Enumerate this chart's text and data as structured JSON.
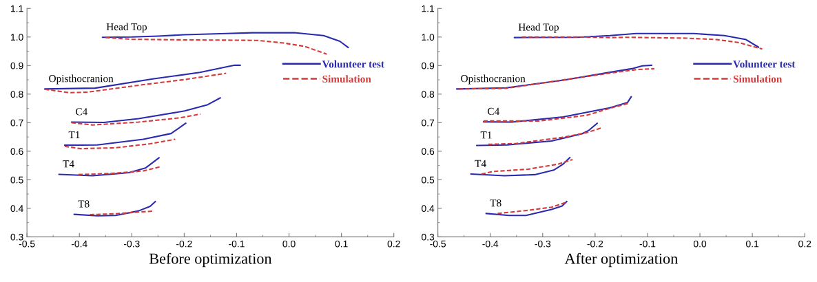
{
  "chart_data": [
    {
      "type": "line",
      "xlabel": "Before optimization",
      "xlim": [
        -0.5,
        0.2
      ],
      "ylim": [
        0.3,
        1.1
      ],
      "xticks": [
        -0.5,
        -0.4,
        -0.3,
        -0.2,
        -0.1,
        {
          "value": 0,
          "label": "0.0"
        },
        0.1,
        0.2
      ],
      "yticks": [
        0.3,
        0.4,
        0.5,
        0.6,
        0.7,
        0.8,
        0.9,
        {
          "value": 1,
          "label": "1.0"
        },
        1.1
      ],
      "grid": false,
      "legend": "right",
      "marker": "none",
      "annotations": [
        "Head Top",
        "Opisthocranion",
        "C4",
        "T1",
        "T4",
        "T8"
      ],
      "series": [
        {
          "name": "Volunteer test",
          "color": "#2a2ab0",
          "line_style": "solid",
          "x": [
            -0.356,
            -0.3,
            -0.25,
            -0.2,
            -0.12,
            -0.07,
            0.01,
            0.066,
            0.097,
            0.113
          ],
          "values": [
            0.999,
            1.0,
            1.003,
            1.008,
            1.012,
            1.015,
            1.015,
            1.005,
            0.985,
            0.963
          ]
        },
        {
          "name": "Simulation",
          "color": "#d43a3a",
          "line_style": "dashed",
          "x": [
            -0.35,
            -0.3,
            -0.2,
            -0.12,
            -0.06,
            -0.01,
            0.03,
            0.072
          ],
          "values": [
            0.998,
            0.992,
            0.99,
            0.989,
            0.988,
            0.979,
            0.967,
            0.94
          ]
        },
        {
          "color": "#2a2ab0",
          "line_style": "solid",
          "x": [
            -0.466,
            -0.37,
            -0.26,
            -0.17,
            -0.115,
            -0.105,
            -0.093
          ],
          "values": [
            0.818,
            0.821,
            0.853,
            0.876,
            0.897,
            0.901,
            0.901
          ]
        },
        {
          "color": "#d43a3a",
          "line_style": "dashed",
          "x": [
            -0.466,
            -0.419,
            -0.384,
            -0.287,
            -0.199,
            -0.12
          ],
          "values": [
            0.817,
            0.805,
            0.807,
            0.831,
            0.851,
            0.873
          ]
        },
        {
          "color": "#2a2ab0",
          "line_style": "solid",
          "x": [
            -0.415,
            -0.353,
            -0.287,
            -0.199,
            -0.155,
            -0.131
          ],
          "values": [
            0.702,
            0.701,
            0.714,
            0.741,
            0.763,
            0.787
          ]
        },
        {
          "color": "#d43a3a",
          "line_style": "dashed",
          "x": [
            -0.415,
            -0.375,
            -0.287,
            -0.208,
            -0.169
          ],
          "values": [
            0.7,
            0.692,
            0.702,
            0.717,
            0.73
          ]
        },
        {
          "color": "#2a2ab0",
          "line_style": "solid",
          "x": [
            -0.428,
            -0.366,
            -0.278,
            -0.225,
            -0.197
          ],
          "values": [
            0.621,
            0.622,
            0.642,
            0.662,
            0.698
          ]
        },
        {
          "color": "#d43a3a",
          "line_style": "dashed",
          "x": [
            -0.428,
            -0.397,
            -0.331,
            -0.265,
            -0.217
          ],
          "values": [
            0.617,
            0.609,
            0.612,
            0.626,
            0.642
          ]
        },
        {
          "color": "#2a2ab0",
          "line_style": "solid",
          "x": [
            -0.439,
            -0.375,
            -0.305,
            -0.274,
            -0.248
          ],
          "values": [
            0.519,
            0.514,
            0.525,
            0.541,
            0.577
          ]
        },
        {
          "color": "#d43a3a",
          "line_style": "dashed",
          "x": [
            -0.402,
            -0.331,
            -0.278,
            -0.247
          ],
          "values": [
            0.518,
            0.523,
            0.531,
            0.545
          ]
        },
        {
          "color": "#2a2ab0",
          "line_style": "solid",
          "x": [
            -0.41,
            -0.366,
            -0.331,
            -0.287,
            -0.265,
            -0.255
          ],
          "values": [
            0.379,
            0.374,
            0.375,
            0.391,
            0.407,
            0.424
          ]
        },
        {
          "color": "#d43a3a",
          "line_style": "dashed",
          "x": [
            -0.38,
            -0.331,
            -0.287,
            -0.261
          ],
          "values": [
            0.378,
            0.381,
            0.387,
            0.39
          ]
        }
      ]
    },
    {
      "type": "line",
      "xlabel": "After optimization",
      "xlim": [
        -0.5,
        0.2
      ],
      "ylim": [
        0.3,
        1.1
      ],
      "xticks": [
        -0.5,
        -0.4,
        -0.3,
        -0.2,
        -0.1,
        {
          "value": 0,
          "label": "0.0"
        },
        0.1,
        0.2
      ],
      "yticks": [
        0.3,
        0.4,
        0.5,
        0.6,
        0.7,
        0.8,
        0.9,
        {
          "value": 1,
          "label": "1.0"
        },
        1.1
      ],
      "grid": false,
      "legend": "right",
      "marker": "none",
      "annotations": [
        "Head Top",
        "Opisthocranion",
        "C4",
        "T1",
        "T4",
        "T8"
      ],
      "series": [
        {
          "name": "Volunteer test",
          "color": "#2a2ab0",
          "line_style": "solid",
          "x": [
            -0.354,
            -0.234,
            -0.172,
            -0.122,
            -0.011,
            0.047,
            0.088,
            0.112
          ],
          "values": [
            0.998,
            0.999,
            1.005,
            1.012,
            1.012,
            1.005,
            0.991,
            0.964
          ]
        },
        {
          "name": "Simulation",
          "color": "#d43a3a",
          "line_style": "dashed",
          "x": [
            -0.34,
            -0.23,
            -0.17,
            -0.138,
            -0.026,
            0.032,
            0.073,
            0.119
          ],
          "values": [
            1.0,
            1.0,
            0.998,
            0.999,
            0.996,
            0.991,
            0.981,
            0.958
          ]
        },
        {
          "color": "#2a2ab0",
          "line_style": "solid",
          "x": [
            -0.464,
            -0.37,
            -0.26,
            -0.17,
            -0.13,
            -0.11,
            -0.092
          ],
          "values": [
            0.818,
            0.822,
            0.849,
            0.877,
            0.889,
            0.899,
            0.901
          ]
        },
        {
          "color": "#d43a3a",
          "line_style": "dashed",
          "x": [
            -0.46,
            -0.37,
            -0.26,
            -0.17,
            -0.12,
            -0.087
          ],
          "values": [
            0.818,
            0.82,
            0.85,
            0.874,
            0.886,
            0.889
          ]
        },
        {
          "color": "#2a2ab0",
          "line_style": "solid",
          "x": [
            -0.413,
            -0.359,
            -0.261,
            -0.172,
            -0.138,
            -0.131
          ],
          "values": [
            0.703,
            0.702,
            0.72,
            0.752,
            0.771,
            0.791
          ]
        },
        {
          "color": "#d43a3a",
          "line_style": "dashed",
          "x": [
            -0.413,
            -0.306,
            -0.216,
            -0.163,
            -0.135
          ],
          "values": [
            0.706,
            0.706,
            0.726,
            0.755,
            0.768
          ]
        },
        {
          "color": "#2a2ab0",
          "line_style": "solid",
          "x": [
            -0.426,
            -0.368,
            -0.283,
            -0.225,
            -0.212,
            -0.196
          ],
          "values": [
            0.62,
            0.622,
            0.636,
            0.661,
            0.673,
            0.698
          ]
        },
        {
          "color": "#d43a3a",
          "line_style": "dashed",
          "x": [
            -0.404,
            -0.35,
            -0.261,
            -0.216,
            -0.189
          ],
          "values": [
            0.624,
            0.627,
            0.649,
            0.665,
            0.681
          ]
        },
        {
          "color": "#2a2ab0",
          "line_style": "solid",
          "x": [
            -0.437,
            -0.373,
            -0.315,
            -0.279,
            -0.261,
            -0.248
          ],
          "values": [
            0.52,
            0.514,
            0.518,
            0.534,
            0.555,
            0.578
          ]
        },
        {
          "color": "#d43a3a",
          "line_style": "dashed",
          "x": [
            -0.417,
            -0.395,
            -0.328,
            -0.27,
            -0.243
          ],
          "values": [
            0.52,
            0.529,
            0.537,
            0.555,
            0.571
          ]
        },
        {
          "color": "#2a2ab0",
          "line_style": "solid",
          "x": [
            -0.408,
            -0.364,
            -0.332,
            -0.283,
            -0.263,
            -0.254
          ],
          "values": [
            0.382,
            0.375,
            0.375,
            0.396,
            0.408,
            0.424
          ]
        },
        {
          "color": "#d43a3a",
          "line_style": "dashed",
          "x": [
            -0.386,
            -0.328,
            -0.283,
            -0.254
          ],
          "values": [
            0.382,
            0.393,
            0.404,
            0.422
          ]
        }
      ]
    }
  ]
}
